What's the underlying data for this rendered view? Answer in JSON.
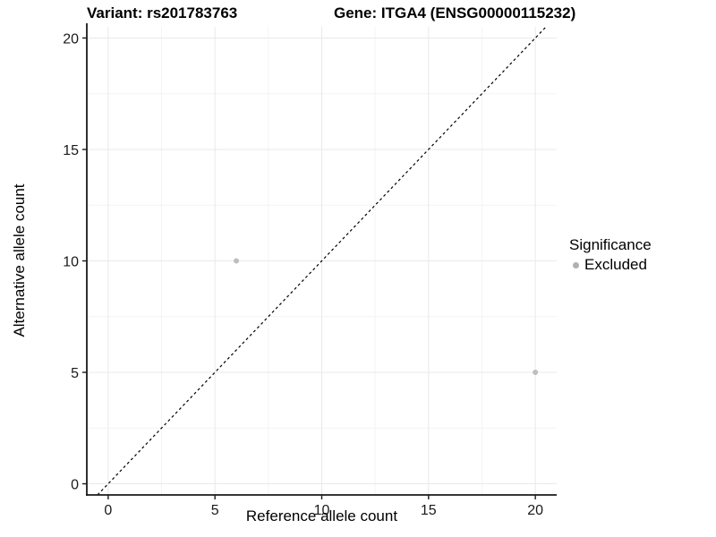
{
  "titles": {
    "variant": "Variant: rs201783763",
    "gene": "Gene: ITGA4 (ENSG00000115232)"
  },
  "legend": {
    "title": "Significance",
    "items": [
      {
        "label": "Excluded",
        "color": "#b0b0b0"
      }
    ]
  },
  "colors": {
    "background": "#ffffff",
    "axis_line": "#1a1a1a",
    "tick_label": "#1a1a1a",
    "grid_major": "#e9e9e9",
    "grid_minor": "#f4f4f4",
    "identity_line": "#000000",
    "point": "#bebebe"
  },
  "chart_data": {
    "type": "scatter",
    "title": "Variant: rs201783763 | Gene: ITGA4 (ENSG00000115232)",
    "xlabel": "Reference allele count",
    "ylabel": "Alternative allele count",
    "xlim": [
      -1,
      21
    ],
    "ylim": [
      -0.5,
      20.5
    ],
    "x_ticks": [
      0,
      5,
      10,
      15,
      20
    ],
    "y_ticks": [
      0,
      5,
      10,
      15,
      20
    ],
    "x_minor": [
      2.5,
      7.5,
      12.5,
      17.5
    ],
    "y_minor": [
      2.5,
      7.5,
      12.5,
      17.5
    ],
    "grid": true,
    "legend_position": "right",
    "reference_line": {
      "kind": "identity",
      "style": "dashed",
      "color": "#000000"
    },
    "series": [
      {
        "name": "Excluded",
        "color": "#bebebe",
        "points": [
          {
            "x": 6,
            "y": 10
          },
          {
            "x": 20,
            "y": 5
          }
        ]
      }
    ]
  }
}
